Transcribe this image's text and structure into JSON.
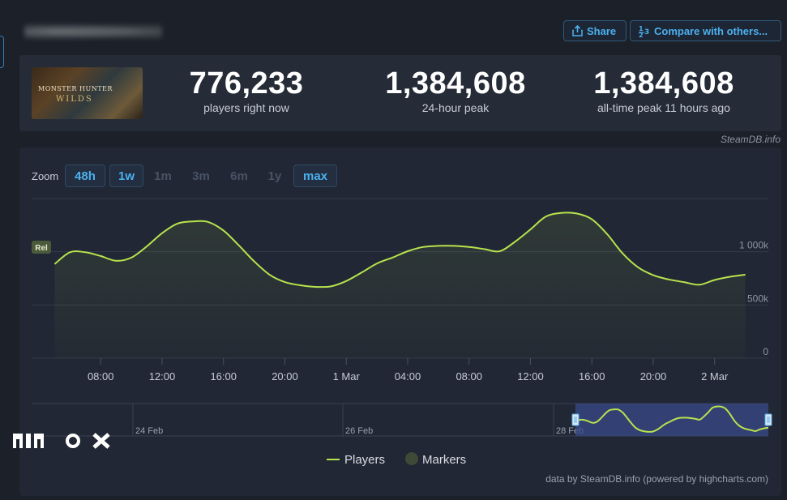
{
  "header": {
    "share_label": "Share",
    "compare_label": "Compare with others...",
    "share_icon": "share-icon",
    "compare_icon": "compare-icon"
  },
  "game": {
    "image_title": "MONSTER HUNTER",
    "image_subtitle": "WILDS"
  },
  "stats": [
    {
      "value": "776,233",
      "label": "players right now"
    },
    {
      "value": "1,384,608",
      "label": "24-hour peak"
    },
    {
      "value": "1,384,608",
      "label": "all-time peak 11 hours ago"
    }
  ],
  "credit_top": "SteamDB.info",
  "zoom": {
    "label": "Zoom",
    "options": [
      {
        "label": "48h",
        "active": true
      },
      {
        "label": "1w",
        "active": true
      },
      {
        "label": "1m",
        "active": false
      },
      {
        "label": "3m",
        "active": false
      },
      {
        "label": "6m",
        "active": false
      },
      {
        "label": "1y",
        "active": false
      },
      {
        "label": "max",
        "active": true
      }
    ]
  },
  "credit_bottom": "data by SteamDB.info (powered by highcharts.com)",
  "logo_text": "",
  "colors": {
    "line": "#b7e34d",
    "accent": "#4cb0ef",
    "marker": "#3d4a36",
    "navigator_selection": "#3a4a8a"
  },
  "chart_data": {
    "type": "line",
    "title": "",
    "xlabel": "",
    "ylabel": "",
    "x_ticks": [
      "08:00",
      "12:00",
      "16:00",
      "20:00",
      "1 Mar",
      "04:00",
      "08:00",
      "12:00",
      "16:00",
      "20:00",
      "2 Mar"
    ],
    "y_ticks": [
      "0",
      "500k",
      "1 000k"
    ],
    "ylim": [
      0,
      1500000
    ],
    "grid": true,
    "legend": {
      "position": "bottom-center",
      "items": [
        "Players",
        "Markers"
      ]
    },
    "marker_label": "Rel",
    "series": [
      {
        "name": "Players",
        "x": [
          5.0,
          6.0,
          7.0,
          8.0,
          9.0,
          10.0,
          11.0,
          12.0,
          13.0,
          14.0,
          15.0,
          16.0,
          17.0,
          18.0,
          19.0,
          20.0,
          21.0,
          22.0,
          23.0,
          24.0,
          25.0,
          26.0,
          27.0,
          28.0,
          29.0,
          30.0,
          31.0,
          32.0,
          33.0,
          34.0,
          35.0,
          36.0,
          37.0,
          38.0,
          39.0,
          40.0,
          41.0,
          42.0,
          43.0,
          44.0,
          45.0,
          46.0,
          47.0,
          48.0,
          49.0,
          50.0
        ],
        "y": [
          885000,
          995000,
          995000,
          960000,
          915000,
          945000,
          1050000,
          1175000,
          1265000,
          1285000,
          1280000,
          1200000,
          1060000,
          910000,
          785000,
          715000,
          685000,
          670000,
          675000,
          725000,
          805000,
          890000,
          945000,
          1005000,
          1045000,
          1055000,
          1055000,
          1045000,
          1025000,
          1005000,
          1095000,
          1210000,
          1330000,
          1365000,
          1360000,
          1305000,
          1165000,
          985000,
          855000,
          780000,
          740000,
          715000,
          690000,
          735000,
          765000,
          785000
        ]
      }
    ],
    "navigator": {
      "labels": [
        "24 Feb",
        "26 Feb",
        "28 Feb"
      ]
    }
  }
}
